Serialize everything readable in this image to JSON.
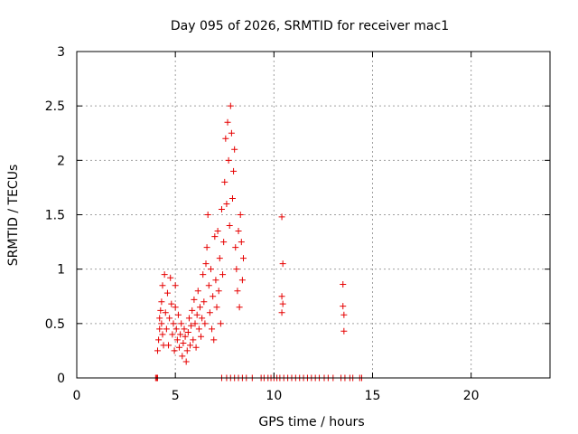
{
  "chart_data": {
    "type": "scatter",
    "title": "Day 095 of 2026, SRMTID for receiver mac1",
    "xlabel": "GPS time / hours",
    "ylabel": "SRMTID / TECUs",
    "xlim": [
      0,
      24
    ],
    "ylim": [
      0,
      3
    ],
    "xticks": [
      0,
      5,
      10,
      15,
      20
    ],
    "yticks": [
      0,
      0.5,
      1,
      1.5,
      2,
      2.5,
      3
    ],
    "xtick_labels": [
      "0",
      "5",
      "10",
      "15",
      "20"
    ],
    "ytick_labels": [
      "0",
      "0.5",
      "1",
      "1.5",
      "2",
      "2.5",
      "3"
    ],
    "grid": true,
    "marker": "+",
    "series": [
      {
        "name": "SRMTID",
        "color": "#e60000",
        "points": [
          [
            4.0,
            0.0
          ],
          [
            4.05,
            0.0
          ],
          [
            4.1,
            0.0
          ],
          [
            7.35,
            0.0
          ],
          [
            7.6,
            0.0
          ],
          [
            7.8,
            0.0
          ],
          [
            8.0,
            0.0
          ],
          [
            8.2,
            0.0
          ],
          [
            8.4,
            0.0
          ],
          [
            8.6,
            0.0
          ],
          [
            8.9,
            0.0
          ],
          [
            9.35,
            0.0
          ],
          [
            9.5,
            0.0
          ],
          [
            9.7,
            0.0
          ],
          [
            9.85,
            0.0
          ],
          [
            10.0,
            0.0
          ],
          [
            10.15,
            0.0
          ],
          [
            10.3,
            0.0
          ],
          [
            10.5,
            0.0
          ],
          [
            10.7,
            0.0
          ],
          [
            10.9,
            0.0
          ],
          [
            11.1,
            0.0
          ],
          [
            11.3,
            0.0
          ],
          [
            11.5,
            0.0
          ],
          [
            11.7,
            0.0
          ],
          [
            11.9,
            0.0
          ],
          [
            12.1,
            0.0
          ],
          [
            12.3,
            0.0
          ],
          [
            12.55,
            0.0
          ],
          [
            12.75,
            0.0
          ],
          [
            13.0,
            0.0
          ],
          [
            13.4,
            0.0
          ],
          [
            13.6,
            0.0
          ],
          [
            13.85,
            0.0
          ],
          [
            14.0,
            0.0
          ],
          [
            14.35,
            0.0
          ],
          [
            14.45,
            0.0
          ],
          [
            4.1,
            0.25
          ],
          [
            4.15,
            0.35
          ],
          [
            4.2,
            0.45
          ],
          [
            4.2,
            0.55
          ],
          [
            4.25,
            0.62
          ],
          [
            4.3,
            0.5
          ],
          [
            4.3,
            0.7
          ],
          [
            4.35,
            0.85
          ],
          [
            4.35,
            0.4
          ],
          [
            4.4,
            0.3
          ],
          [
            4.45,
            0.95
          ],
          [
            4.5,
            0.6
          ],
          [
            4.55,
            0.45
          ],
          [
            4.6,
            0.78
          ],
          [
            4.65,
            0.3
          ],
          [
            4.7,
            0.55
          ],
          [
            4.75,
            0.92
          ],
          [
            4.8,
            0.68
          ],
          [
            4.85,
            0.4
          ],
          [
            4.9,
            0.5
          ],
          [
            4.95,
            0.25
          ],
          [
            5.0,
            0.65
          ],
          [
            5.0,
            0.85
          ],
          [
            5.05,
            0.45
          ],
          [
            5.1,
            0.35
          ],
          [
            5.15,
            0.58
          ],
          [
            5.2,
            0.28
          ],
          [
            5.25,
            0.4
          ],
          [
            5.3,
            0.5
          ],
          [
            5.35,
            0.2
          ],
          [
            5.4,
            0.32
          ],
          [
            5.45,
            0.45
          ],
          [
            5.5,
            0.38
          ],
          [
            5.55,
            0.15
          ],
          [
            5.6,
            0.25
          ],
          [
            5.65,
            0.42
          ],
          [
            5.7,
            0.55
          ],
          [
            5.75,
            0.3
          ],
          [
            5.8,
            0.48
          ],
          [
            5.85,
            0.62
          ],
          [
            5.9,
            0.35
          ],
          [
            5.95,
            0.72
          ],
          [
            6.0,
            0.5
          ],
          [
            6.05,
            0.28
          ],
          [
            6.1,
            0.58
          ],
          [
            6.15,
            0.8
          ],
          [
            6.2,
            0.45
          ],
          [
            6.25,
            0.65
          ],
          [
            6.3,
            0.38
          ],
          [
            6.35,
            0.55
          ],
          [
            6.4,
            0.95
          ],
          [
            6.45,
            0.7
          ],
          [
            6.5,
            0.5
          ],
          [
            6.55,
            1.05
          ],
          [
            6.6,
            1.2
          ],
          [
            6.65,
            1.5
          ],
          [
            6.7,
            0.85
          ],
          [
            6.75,
            0.6
          ],
          [
            6.8,
            1.0
          ],
          [
            6.85,
            0.45
          ],
          [
            6.9,
            0.75
          ],
          [
            6.95,
            0.35
          ],
          [
            7.0,
            1.3
          ],
          [
            7.05,
            0.9
          ],
          [
            7.1,
            0.65
          ],
          [
            7.15,
            1.35
          ],
          [
            7.2,
            0.8
          ],
          [
            7.25,
            1.1
          ],
          [
            7.3,
            0.5
          ],
          [
            7.35,
            1.55
          ],
          [
            7.4,
            0.95
          ],
          [
            7.45,
            1.25
          ],
          [
            7.5,
            1.8
          ],
          [
            7.55,
            2.2
          ],
          [
            7.6,
            1.6
          ],
          [
            7.65,
            2.35
          ],
          [
            7.7,
            2.0
          ],
          [
            7.75,
            1.4
          ],
          [
            7.8,
            2.5
          ],
          [
            7.85,
            2.25
          ],
          [
            7.9,
            1.65
          ],
          [
            7.95,
            1.9
          ],
          [
            8.0,
            2.1
          ],
          [
            8.05,
            1.2
          ],
          [
            8.1,
            1.0
          ],
          [
            8.15,
            0.8
          ],
          [
            8.2,
            1.35
          ],
          [
            8.25,
            0.65
          ],
          [
            8.3,
            1.5
          ],
          [
            8.35,
            1.25
          ],
          [
            8.4,
            0.9
          ],
          [
            8.45,
            1.1
          ],
          [
            10.4,
            1.48
          ],
          [
            10.45,
            1.05
          ],
          [
            10.4,
            0.75
          ],
          [
            10.45,
            0.68
          ],
          [
            10.4,
            0.6
          ],
          [
            13.5,
            0.86
          ],
          [
            13.5,
            0.66
          ],
          [
            13.55,
            0.58
          ],
          [
            13.55,
            0.43
          ]
        ]
      }
    ]
  }
}
